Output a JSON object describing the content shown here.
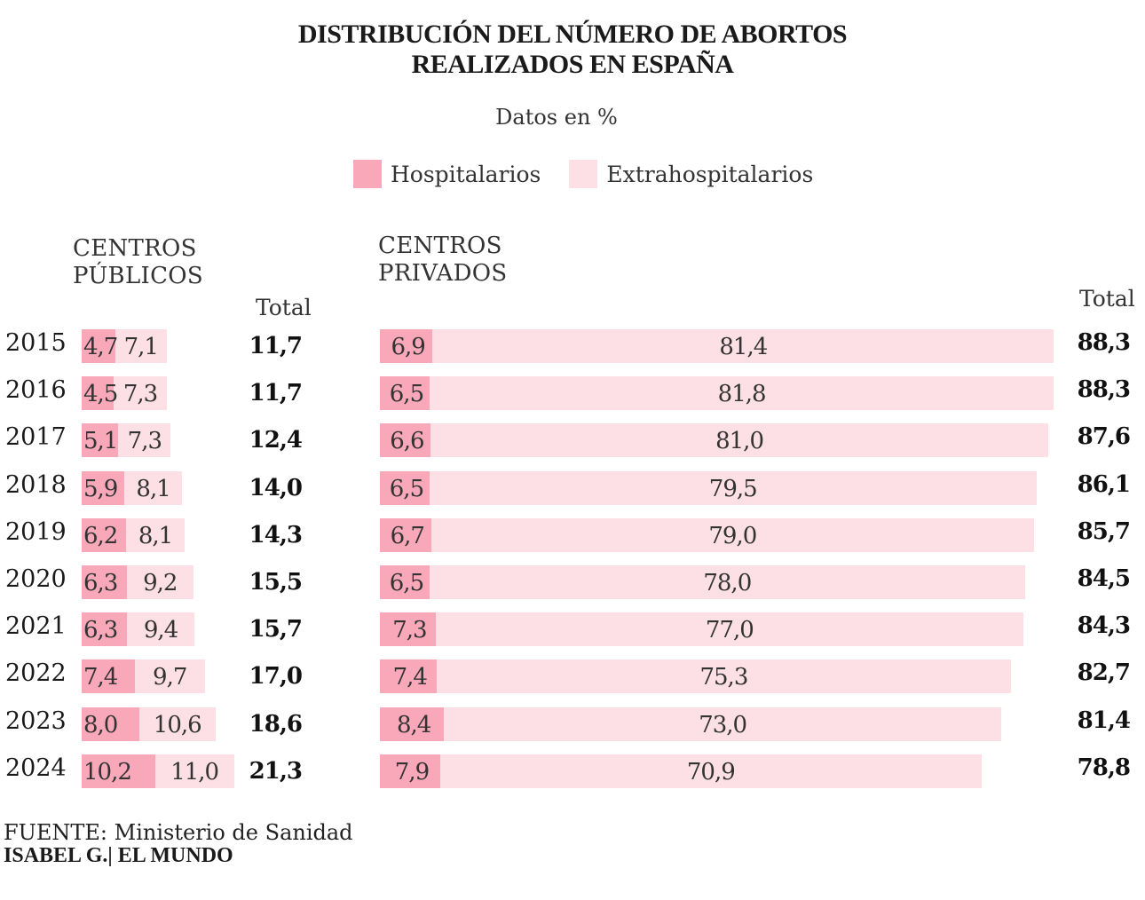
{
  "title_line1": "DISTRIBUCIÓN DEL NÚMERO DE ABORTOS",
  "title_line2": "REALIZADOS EN ESPAÑA",
  "subtitle": "Datos en %",
  "legend": [
    {
      "label": "Hospitalarios",
      "color": "#f8a8b8"
    },
    {
      "label": "Extrahospitalarios",
      "color": "#fde0e6"
    }
  ],
  "public_header_line1": "CENTROS",
  "public_header_line2": "PÚBLICOS",
  "private_header_line1": "CENTROS",
  "private_header_line2": "PRIVADOS",
  "total_label": "Total",
  "source_label": "FUENTE:",
  "source_value": "Ministerio de Sanidad",
  "credit_author": "ISABEL G.",
  "credit_separator": "|",
  "credit_outlet": "EL MUNDO",
  "chart_data": {
    "type": "bar",
    "orientation": "horizontal",
    "stacked": true,
    "categories": [
      "2015",
      "2016",
      "2017",
      "2018",
      "2019",
      "2020",
      "2021",
      "2022",
      "2023",
      "2024"
    ],
    "panels": [
      {
        "name": "CENTROS PÚBLICOS",
        "series": [
          {
            "name": "Hospitalarios",
            "values": [
              4.7,
              4.5,
              5.1,
              5.9,
              6.2,
              6.3,
              6.3,
              7.4,
              8.0,
              10.2
            ],
            "labels": [
              "4,7",
              "4,5",
              "5,1",
              "5,9",
              "6,2",
              "6,3",
              "6,3",
              "7,4",
              "8,0",
              "10,2"
            ]
          },
          {
            "name": "Extrahospitalarios",
            "values": [
              7.1,
              7.3,
              7.3,
              8.1,
              8.1,
              9.2,
              9.4,
              9.7,
              10.6,
              11.0
            ],
            "labels": [
              "7,1",
              "7,3",
              "7,3",
              "8,1",
              "8,1",
              "9,2",
              "9,4",
              "9,7",
              "10,6",
              "11,0"
            ]
          }
        ],
        "totals": [
          "11,7",
          "11,7",
          "12,4",
          "14,0",
          "14,3",
          "15,5",
          "15,7",
          "17,0",
          "18,6",
          "21,3"
        ]
      },
      {
        "name": "CENTROS PRIVADOS",
        "series": [
          {
            "name": "Hospitalarios",
            "values": [
              6.9,
              6.5,
              6.6,
              6.5,
              6.7,
              6.5,
              7.3,
              7.4,
              8.4,
              7.9
            ],
            "labels": [
              "6,9",
              "6,5",
              "6,6",
              "6,5",
              "6,7",
              "6,5",
              "7,3",
              "7,4",
              "8,4",
              "7,9"
            ]
          },
          {
            "name": "Extrahospitalarios",
            "values": [
              81.4,
              81.8,
              81.0,
              79.5,
              79.0,
              78.0,
              77.0,
              75.3,
              73.0,
              70.9
            ],
            "labels": [
              "81,4",
              "81,8",
              "81,0",
              "79,5",
              "79,0",
              "78,0",
              "77,0",
              "75,3",
              "73,0",
              "70,9"
            ]
          }
        ],
        "totals": [
          "88,3",
          "88,3",
          "87,6",
          "86,1",
          "85,7",
          "84,5",
          "84,3",
          "82,7",
          "81,4",
          "78,8"
        ]
      }
    ]
  }
}
